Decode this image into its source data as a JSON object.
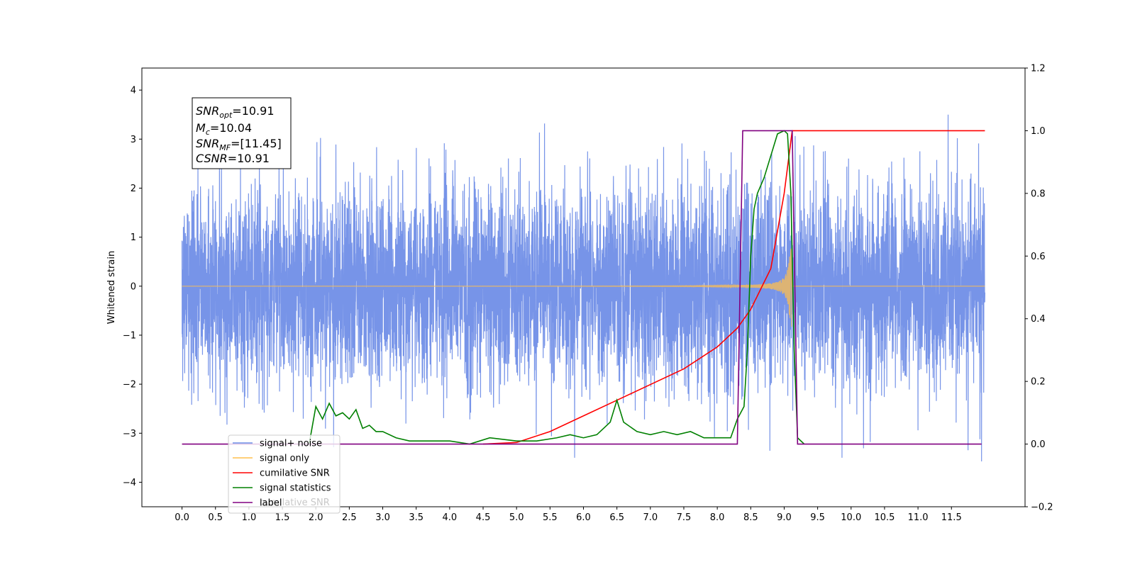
{
  "chart_data": {
    "type": "line",
    "ylabel": "Whitened strain",
    "xlim": [
      -0.6,
      12.6
    ],
    "ylim": [
      -4.5,
      4.45
    ],
    "ylim_right": [
      -0.2,
      1.2
    ],
    "x_ticks": [
      "0.0",
      "0.5",
      "1.0",
      "1.5",
      "2.0",
      "2.5",
      "3.0",
      "3.5",
      "4.0",
      "4.5",
      "5.0",
      "5.5",
      "6.0",
      "6.5",
      "7.0",
      "7.5",
      "8.0",
      "8.5",
      "9.0",
      "9.5",
      "10.0",
      "10.5",
      "11.0",
      "11.5"
    ],
    "y_ticks_left": [
      "4",
      "3",
      "2",
      "1",
      "0",
      "−1",
      "−2",
      "−3",
      "−4"
    ],
    "y_ticks_right": [
      "1.2",
      "1.0",
      "0.8",
      "0.6",
      "0.4",
      "0.2",
      "0.0",
      "−0.2"
    ],
    "annotation": {
      "snr_opt_name": "SNR",
      "snr_opt_sub": "opt",
      "snr_opt_value": "=10.91",
      "mc_name": "M",
      "mc_sub": "c",
      "mc_value": "=10.04",
      "snr_mf_name": "SNR",
      "snr_mf_sub": "MF",
      "snr_mf_value": "=[11.45]",
      "csnr_name": "CSNR",
      "csnr_value": "=10.91"
    },
    "series": [
      {
        "name": "signal+ noise",
        "axis": "left",
        "color": "#6b8be6",
        "x_range": [
          0,
          12
        ],
        "noise_std": 1.0,
        "extreme_range": [
          -4.1,
          4.05
        ]
      },
      {
        "name": "signal only",
        "axis": "left",
        "color": "#ffbf4d",
        "x_range": [
          0,
          12
        ],
        "chirp_end": 9.12
      },
      {
        "name": "cumilative SNR",
        "axis": "right",
        "color": "#ff0000",
        "x": [
          4.5,
          5.0,
          5.5,
          6.0,
          6.5,
          7.0,
          7.5,
          8.0,
          8.3,
          8.5,
          8.8,
          9.0,
          9.12,
          12.0
        ],
        "y": [
          0.0,
          0.005,
          0.04,
          0.09,
          0.14,
          0.19,
          0.24,
          0.31,
          0.37,
          0.43,
          0.56,
          0.8,
          1.0,
          1.0
        ]
      },
      {
        "name": "signal statistics",
        "axis": "right",
        "color": "#008000",
        "x": [
          1.9,
          2.0,
          2.1,
          2.2,
          2.3,
          2.4,
          2.5,
          2.6,
          2.7,
          2.8,
          2.9,
          3.0,
          3.2,
          3.4,
          3.6,
          3.8,
          4.0,
          4.3,
          4.6,
          5.0,
          5.3,
          5.6,
          5.8,
          6.0,
          6.2,
          6.4,
          6.5,
          6.6,
          6.8,
          7.0,
          7.2,
          7.4,
          7.6,
          7.8,
          8.0,
          8.2,
          8.3,
          8.4,
          8.45,
          8.5,
          8.55,
          8.6,
          8.7,
          8.8,
          8.9,
          9.0,
          9.05,
          9.1,
          9.15,
          9.2,
          9.3
        ],
        "y": [
          0.0,
          0.12,
          0.08,
          0.13,
          0.09,
          0.1,
          0.08,
          0.11,
          0.05,
          0.06,
          0.04,
          0.04,
          0.02,
          0.01,
          0.01,
          0.01,
          0.01,
          0.0,
          0.02,
          0.01,
          0.01,
          0.02,
          0.03,
          0.02,
          0.03,
          0.07,
          0.14,
          0.07,
          0.04,
          0.03,
          0.04,
          0.03,
          0.04,
          0.02,
          0.02,
          0.02,
          0.08,
          0.12,
          0.3,
          0.6,
          0.75,
          0.8,
          0.85,
          0.92,
          0.99,
          1.0,
          0.99,
          0.8,
          0.3,
          0.02,
          0.0
        ]
      },
      {
        "name": "label",
        "axis": "right",
        "color": "#800080",
        "x": [
          0.0,
          8.3,
          8.38,
          9.12,
          9.2,
          11.95
        ],
        "y": [
          0.0,
          0.0,
          1.0,
          1.0,
          0.0,
          0.0
        ]
      }
    ],
    "legend": {
      "position": "lower-left",
      "entries": [
        "signal+ noise",
        "signal only",
        "cumilative SNR",
        "signal statistics",
        "label"
      ],
      "ghost_text": "cumilative SNR"
    },
    "grid": false
  }
}
